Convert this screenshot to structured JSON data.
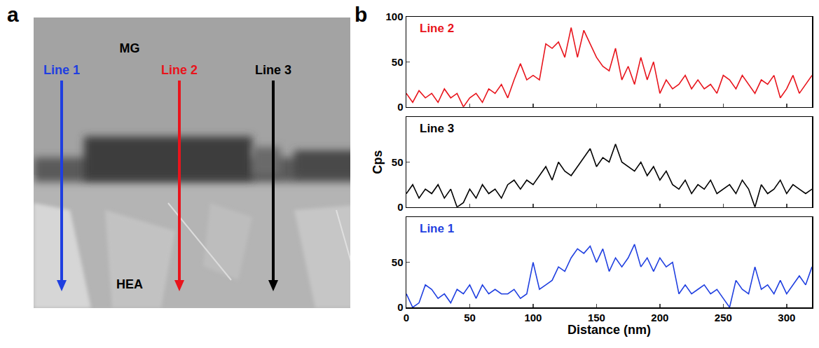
{
  "image_panel": {
    "panel_label": "a",
    "top_region": "MG",
    "bottom_region": "HEA",
    "lines": [
      {
        "name": "Line 1",
        "color": "#1f3fe0"
      },
      {
        "name": "Line 2",
        "color": "#e8141c"
      },
      {
        "name": "Line 3",
        "color": "#000000"
      }
    ]
  },
  "chart_data": [
    {
      "type": "line",
      "panel_label": "b",
      "x": [
        0,
        5,
        10,
        15,
        20,
        25,
        30,
        35,
        40,
        45,
        50,
        55,
        60,
        65,
        70,
        75,
        80,
        85,
        90,
        95,
        100,
        105,
        110,
        115,
        120,
        125,
        130,
        135,
        140,
        145,
        150,
        155,
        160,
        165,
        170,
        175,
        180,
        185,
        190,
        195,
        200,
        205,
        210,
        215,
        220,
        225,
        230,
        235,
        240,
        245,
        250,
        255,
        260,
        265,
        270,
        275,
        280,
        285,
        290,
        295,
        300,
        305,
        310,
        315,
        320
      ],
      "series": [
        {
          "name": "Line 2",
          "color": "#e8141c",
          "values": [
            15,
            5,
            18,
            10,
            15,
            5,
            20,
            10,
            15,
            0,
            10,
            15,
            5,
            20,
            15,
            25,
            10,
            30,
            48,
            30,
            35,
            30,
            70,
            65,
            72,
            55,
            88,
            55,
            85,
            70,
            55,
            45,
            40,
            65,
            30,
            45,
            25,
            55,
            30,
            50,
            15,
            30,
            20,
            25,
            35,
            20,
            30,
            20,
            25,
            15,
            35,
            30,
            20,
            35,
            25,
            15,
            30,
            25,
            35,
            10,
            20,
            35,
            15,
            25,
            35
          ]
        }
      ],
      "xlim": [
        0,
        320
      ],
      "xticks": [
        0,
        50,
        100,
        150,
        200,
        250,
        300
      ],
      "ylim": [
        0,
        100
      ],
      "yticks": [
        0,
        50,
        100
      ],
      "tick_labels": "y",
      "grid": false
    },
    {
      "type": "line",
      "x": [
        0,
        5,
        10,
        15,
        20,
        25,
        30,
        35,
        40,
        45,
        50,
        55,
        60,
        65,
        70,
        75,
        80,
        85,
        90,
        95,
        100,
        105,
        110,
        115,
        120,
        125,
        130,
        135,
        140,
        145,
        150,
        155,
        160,
        165,
        170,
        175,
        180,
        185,
        190,
        195,
        200,
        205,
        210,
        215,
        220,
        225,
        230,
        235,
        240,
        245,
        250,
        255,
        260,
        265,
        270,
        275,
        280,
        285,
        290,
        295,
        300,
        305,
        310,
        315,
        320
      ],
      "series": [
        {
          "name": "Line 3",
          "color": "#000000",
          "values": [
            15,
            25,
            10,
            20,
            15,
            25,
            10,
            20,
            0,
            5,
            20,
            10,
            25,
            15,
            20,
            10,
            25,
            30,
            20,
            30,
            25,
            35,
            45,
            30,
            50,
            40,
            35,
            45,
            55,
            65,
            45,
            55,
            50,
            70,
            50,
            45,
            40,
            50,
            35,
            45,
            30,
            40,
            25,
            20,
            30,
            15,
            25,
            20,
            30,
            15,
            20,
            25,
            15,
            30,
            20,
            0,
            25,
            15,
            20,
            30,
            15,
            25,
            20,
            15,
            20
          ]
        }
      ],
      "xlim": [
        0,
        320
      ],
      "xticks": [
        0,
        50,
        100,
        150,
        200,
        250,
        300
      ],
      "ylim": [
        0,
        100
      ],
      "yticks": [
        0,
        50
      ],
      "ylabel": "Cps",
      "tick_labels": "y",
      "grid": false
    },
    {
      "type": "line",
      "x": [
        0,
        5,
        10,
        15,
        20,
        25,
        30,
        35,
        40,
        45,
        50,
        55,
        60,
        65,
        70,
        75,
        80,
        85,
        90,
        95,
        100,
        105,
        110,
        115,
        120,
        125,
        130,
        135,
        140,
        145,
        150,
        155,
        160,
        165,
        170,
        175,
        180,
        185,
        190,
        195,
        200,
        205,
        210,
        215,
        220,
        225,
        230,
        235,
        240,
        245,
        250,
        255,
        260,
        265,
        270,
        275,
        280,
        285,
        290,
        295,
        300,
        305,
        310,
        315,
        320
      ],
      "series": [
        {
          "name": "Line 1",
          "color": "#1f3fe0",
          "values": [
            15,
            0,
            5,
            25,
            20,
            10,
            15,
            5,
            20,
            15,
            25,
            10,
            25,
            15,
            20,
            15,
            15,
            20,
            10,
            15,
            50,
            20,
            25,
            30,
            45,
            40,
            55,
            65,
            60,
            68,
            50,
            65,
            40,
            55,
            45,
            55,
            70,
            45,
            55,
            40,
            55,
            45,
            50,
            15,
            25,
            15,
            20,
            25,
            15,
            20,
            10,
            0,
            30,
            20,
            15,
            45,
            20,
            25,
            15,
            30,
            15,
            25,
            35,
            25,
            45
          ]
        }
      ],
      "xlim": [
        0,
        320
      ],
      "xticks": [
        0,
        50,
        100,
        150,
        200,
        250,
        300
      ],
      "ylim": [
        0,
        100
      ],
      "yticks": [
        0,
        50
      ],
      "xlabel": "Distance (nm)",
      "grid": false
    }
  ]
}
